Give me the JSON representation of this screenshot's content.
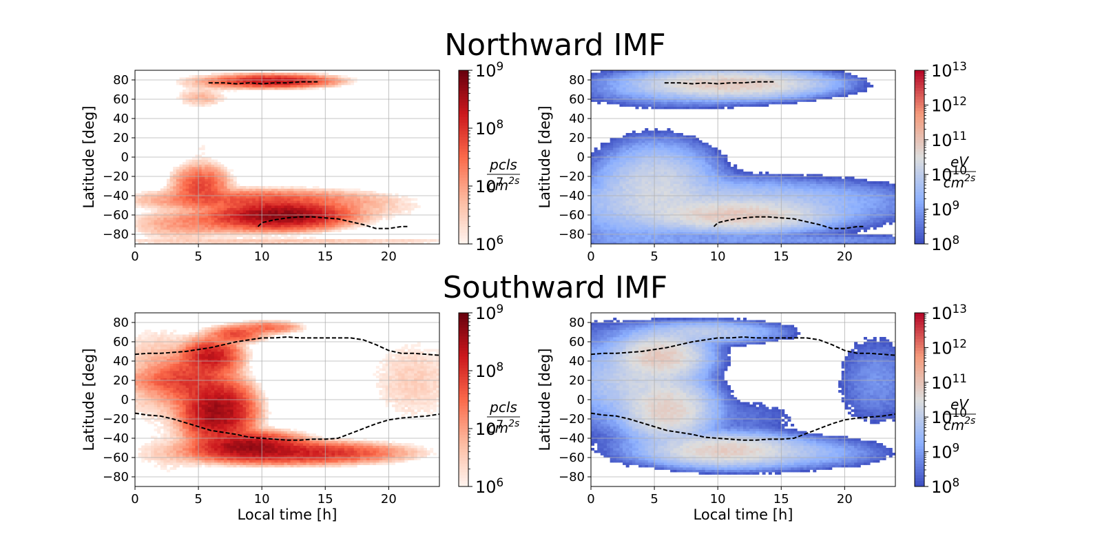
{
  "rows": [
    {
      "title": "Northward IMF",
      "panels": [
        {
          "ylabel": "Latitude [deg]",
          "xlabel": "",
          "cb_ticks": [
            "10^9",
            "10^8",
            "10^7",
            "10^6"
          ],
          "unit_num": "pcls",
          "unit_den": "cm^2s"
        },
        {
          "ylabel": "Latitude [deg]",
          "xlabel": "",
          "cb_ticks": [
            "10^13",
            "10^12",
            "10^11",
            "10^10",
            "10^9",
            "10^8"
          ],
          "unit_num": "eV",
          "unit_den": "cm^2s"
        }
      ]
    },
    {
      "title": "Southward IMF",
      "panels": [
        {
          "ylabel": "Latitude [deg]",
          "xlabel": "Local time [h]",
          "cb_ticks": [
            "10^9",
            "10^8",
            "10^7",
            "10^6"
          ],
          "unit_num": "pcls",
          "unit_den": "cm^2s"
        },
        {
          "ylabel": "Latitude [deg]",
          "xlabel": "Local time [h]",
          "cb_ticks": [
            "10^13",
            "10^12",
            "10^11",
            "10^10",
            "10^9",
            "10^8"
          ],
          "unit_num": "eV",
          "unit_den": "cm^2s"
        }
      ]
    }
  ],
  "colors": {
    "reds_cmap": [
      "#fff5f0",
      "#fcbba1",
      "#fb6a4a",
      "#cb181d",
      "#67000d"
    ],
    "coolwarm_cmap": [
      "#3b4cc0",
      "#8db0fe",
      "#dddddd",
      "#f49a7b",
      "#b40426"
    ],
    "boundary": "#000000",
    "grid": "#b0b0b0"
  },
  "chart_data": [
    {
      "type": "heatmap",
      "row": "Northward IMF",
      "quantity": "particle flux",
      "colormap": "Reds",
      "colorbar_log_range": [
        6,
        9
      ],
      "colorbar_ticks": [
        "10^6",
        "10^7",
        "10^8",
        "10^9"
      ],
      "colorbar_unit": "pcls / cm^2s",
      "xlabel": "",
      "ylabel": "Latitude [deg]",
      "xlim": [
        0,
        24
      ],
      "ylim": [
        -90,
        90
      ],
      "xticks": [
        0,
        5,
        10,
        15,
        20
      ],
      "yticks": [
        -80,
        -60,
        -40,
        -20,
        0,
        20,
        40,
        60,
        80
      ],
      "grid": true,
      "blobs": [
        {
          "lt": 11,
          "lat": 79,
          "slt": 2.0,
          "slat": 3,
          "level": 8.3
        },
        {
          "lt": 7.5,
          "lat": 78,
          "slt": 2.0,
          "slat": 4,
          "level": 7.0
        },
        {
          "lt": 5.2,
          "lat": 62,
          "slt": 1.0,
          "slat": 5,
          "level": 6.8
        },
        {
          "lt": 11.5,
          "lat": -60,
          "slt": 2.2,
          "slat": 6,
          "level": 8.7
        },
        {
          "lt": 9.5,
          "lat": -44,
          "slt": 4.0,
          "slat": 5,
          "level": 7.7
        },
        {
          "lt": 5.2,
          "lat": -30,
          "slt": 1.0,
          "slat": 10,
          "level": 7.8
        },
        {
          "lt": 7.5,
          "lat": -66,
          "slt": 2.5,
          "slat": 6,
          "level": 7.4
        },
        {
          "lt": 3.5,
          "lat": -70,
          "slt": 2.0,
          "slat": 8,
          "level": 6.9
        },
        {
          "lt": 16,
          "lat": -52,
          "slt": 3.5,
          "slat": 8,
          "level": 6.7
        },
        {
          "lt": 12,
          "lat": -87,
          "slt": 9.0,
          "slat": 2,
          "level": 6.6
        },
        {
          "lt": 5.2,
          "lat": 10,
          "slt": 0.8,
          "slat": 10,
          "level": 6.0
        }
      ],
      "boundaries": [
        {
          "lt": [
            5.8,
            7,
            8,
            9,
            10,
            11,
            12,
            13,
            14,
            14.4
          ],
          "lat": [
            77,
            77,
            76,
            77,
            76,
            77,
            77,
            78,
            78,
            78
          ]
        },
        {
          "lt": [
            9.7,
            10,
            11,
            12,
            13,
            14,
            15,
            16,
            17,
            18,
            19,
            20,
            21,
            21.6
          ],
          "lat": [
            -72,
            -68,
            -65,
            -63,
            -62,
            -62,
            -63,
            -64,
            -67,
            -70,
            -74,
            -74,
            -72,
            -72
          ]
        }
      ]
    },
    {
      "type": "heatmap",
      "row": "Northward IMF",
      "quantity": "energy flux",
      "colormap": "coolwarm",
      "colorbar_log_range": [
        8,
        13
      ],
      "colorbar_ticks": [
        "10^8",
        "10^9",
        "10^10",
        "10^11",
        "10^12",
        "10^13"
      ],
      "colorbar_unit": "eV / cm^2s",
      "xlabel": "",
      "ylabel": "Latitude [deg]",
      "xlim": [
        0,
        24
      ],
      "ylim": [
        -90,
        90
      ],
      "xticks": [
        0,
        5,
        10,
        15,
        20
      ],
      "yticks": [
        -80,
        -60,
        -40,
        -20,
        0,
        20,
        40,
        60,
        80
      ],
      "grid": true,
      "blobs": [
        {
          "lt": 11,
          "lat": 76,
          "slt": 3.0,
          "slat": 6,
          "level": 10.9
        },
        {
          "lt": 7,
          "lat": 72,
          "slt": 3.5,
          "slat": 9,
          "level": 9.4
        },
        {
          "lt": 16,
          "lat": 75,
          "slt": 2.5,
          "slat": 5,
          "level": 8.7
        },
        {
          "lt": 5.2,
          "lat": -30,
          "slt": 2.0,
          "slat": 18,
          "level": 10.3
        },
        {
          "lt": 11.5,
          "lat": -60,
          "slt": 3.0,
          "slat": 7,
          "level": 10.9
        },
        {
          "lt": 10,
          "lat": -45,
          "slt": 6.0,
          "slat": 10,
          "level": 9.9
        },
        {
          "lt": 3,
          "lat": -60,
          "slt": 2.5,
          "slat": 15,
          "level": 9.4
        },
        {
          "lt": 18,
          "lat": -55,
          "slt": 3.5,
          "slat": 12,
          "level": 8.8
        },
        {
          "lt": 5,
          "lat": 0,
          "slt": 1.3,
          "slat": 10,
          "level": 8.7
        },
        {
          "lt": 12,
          "lat": -86,
          "slt": 10.0,
          "slat": 3,
          "level": 9.0
        }
      ],
      "boundaries": [
        {
          "lt": [
            5.8,
            7,
            8,
            9,
            10,
            11,
            12,
            13,
            14,
            14.4
          ],
          "lat": [
            77,
            77,
            76,
            77,
            76,
            77,
            77,
            78,
            78,
            78
          ]
        },
        {
          "lt": [
            9.7,
            10,
            11,
            12,
            13,
            14,
            15,
            16,
            17,
            18,
            19,
            20,
            21,
            21.6
          ],
          "lat": [
            -72,
            -68,
            -65,
            -63,
            -62,
            -62,
            -63,
            -64,
            -67,
            -70,
            -74,
            -74,
            -72,
            -72
          ]
        }
      ]
    },
    {
      "type": "heatmap",
      "row": "Southward IMF",
      "quantity": "particle flux",
      "colormap": "Reds",
      "colorbar_log_range": [
        6,
        9
      ],
      "colorbar_ticks": [
        "10^6",
        "10^7",
        "10^8",
        "10^9"
      ],
      "colorbar_unit": "pcls / cm^2s",
      "xlabel": "Local time [h]",
      "ylabel": "Latitude [deg]",
      "xlim": [
        0,
        24
      ],
      "ylim": [
        -90,
        90
      ],
      "xticks": [
        0,
        5,
        10,
        15,
        20
      ],
      "yticks": [
        -80,
        -60,
        -40,
        -20,
        0,
        20,
        40,
        60,
        80
      ],
      "grid": true,
      "blobs": [
        {
          "lt": 6,
          "lat": 45,
          "slt": 1.0,
          "slat": 8,
          "level": 8.3
        },
        {
          "lt": 6.5,
          "lat": -12,
          "slt": 1.2,
          "slat": 14,
          "level": 8.6
        },
        {
          "lt": 4.5,
          "lat": 20,
          "slt": 1.5,
          "slat": 12,
          "level": 7.9
        },
        {
          "lt": 2.5,
          "lat": 20,
          "slt": 1.5,
          "slat": 5,
          "level": 7.3
        },
        {
          "lt": 8,
          "lat": 68,
          "slt": 1.0,
          "slat": 4,
          "level": 7.8
        },
        {
          "lt": 10.5,
          "lat": 75,
          "slt": 1.2,
          "slat": 3,
          "level": 7.5
        },
        {
          "lt": 9,
          "lat": -48,
          "slt": 1.8,
          "slat": 6,
          "level": 8.6
        },
        {
          "lt": 12.5,
          "lat": -55,
          "slt": 3.5,
          "slat": 5,
          "level": 8.2
        },
        {
          "lt": 2,
          "lat": 25,
          "slt": 2.0,
          "slat": 25,
          "level": 6.8
        },
        {
          "lt": 22,
          "lat": 20,
          "slt": 2.0,
          "slat": 25,
          "level": 6.5
        },
        {
          "lt": 3,
          "lat": -55,
          "slt": 2.0,
          "slat": 15,
          "level": 6.3
        }
      ],
      "boundaries": [
        {
          "lt": [
            0,
            1,
            2,
            3,
            4,
            5,
            6,
            7,
            8,
            9,
            10,
            11,
            12,
            13,
            14,
            15,
            16,
            17,
            18,
            19,
            20,
            21,
            22,
            23,
            24
          ],
          "lat": [
            47,
            48,
            48,
            49,
            50,
            52,
            54,
            57,
            60,
            62,
            64,
            64,
            65,
            64,
            64,
            64,
            64,
            64,
            62,
            57,
            51,
            48,
            48,
            47,
            46
          ]
        },
        {
          "lt": [
            0,
            1,
            2,
            3,
            4,
            5,
            6,
            7,
            8,
            9,
            10,
            11,
            12,
            13,
            14,
            15,
            16,
            17,
            18,
            19,
            20,
            21,
            22,
            23,
            24
          ],
          "lat": [
            -14,
            -16,
            -17,
            -20,
            -24,
            -28,
            -32,
            -34,
            -36,
            -39,
            -40,
            -41,
            -42,
            -42,
            -41,
            -41,
            -40,
            -35,
            -30,
            -25,
            -21,
            -19,
            -18,
            -17,
            -15
          ]
        }
      ]
    },
    {
      "type": "heatmap",
      "row": "Southward IMF",
      "quantity": "energy flux",
      "colormap": "coolwarm",
      "colorbar_log_range": [
        8,
        13
      ],
      "colorbar_ticks": [
        "10^8",
        "10^9",
        "10^10",
        "10^11",
        "10^12",
        "10^13"
      ],
      "colorbar_unit": "eV / cm^2s",
      "xlabel": "Local time [h]",
      "ylabel": "Latitude [deg]",
      "xlim": [
        0,
        24
      ],
      "ylim": [
        -90,
        90
      ],
      "xticks": [
        0,
        5,
        10,
        15,
        20
      ],
      "yticks": [
        -80,
        -60,
        -40,
        -20,
        0,
        20,
        40,
        60,
        80
      ],
      "grid": true,
      "blobs": [
        {
          "lt": 5.5,
          "lat": 45,
          "slt": 1.5,
          "slat": 10,
          "level": 10.9
        },
        {
          "lt": 6,
          "lat": -10,
          "slt": 1.5,
          "slat": 14,
          "level": 10.8
        },
        {
          "lt": 4,
          "lat": 20,
          "slt": 2.0,
          "slat": 14,
          "level": 10.1
        },
        {
          "lt": 9,
          "lat": 70,
          "slt": 2.5,
          "slat": 5,
          "level": 10.0
        },
        {
          "lt": 10.5,
          "lat": -52,
          "slt": 2.5,
          "slat": 7,
          "level": 10.8
        },
        {
          "lt": 14,
          "lat": -55,
          "slt": 3.5,
          "slat": 7,
          "level": 9.8
        },
        {
          "lt": 1.5,
          "lat": 20,
          "slt": 2.0,
          "slat": 25,
          "level": 9.4
        },
        {
          "lt": 22.5,
          "lat": 20,
          "slt": 1.5,
          "slat": 22,
          "level": 8.9
        },
        {
          "lt": 12,
          "lat": -20,
          "slt": 2.5,
          "slat": 12,
          "level": 8.5
        },
        {
          "lt": 3,
          "lat": -50,
          "slt": 1.5,
          "slat": 10,
          "level": 8.5
        }
      ],
      "boundaries": [
        {
          "lt": [
            0,
            1,
            2,
            3,
            4,
            5,
            6,
            7,
            8,
            9,
            10,
            11,
            12,
            13,
            14,
            15,
            16,
            17,
            18,
            19,
            20,
            21,
            22,
            23,
            24
          ],
          "lat": [
            47,
            48,
            48,
            49,
            50,
            52,
            54,
            57,
            60,
            62,
            64,
            64,
            65,
            64,
            64,
            64,
            64,
            64,
            62,
            57,
            51,
            48,
            48,
            47,
            46
          ]
        },
        {
          "lt": [
            0,
            1,
            2,
            3,
            4,
            5,
            6,
            7,
            8,
            9,
            10,
            11,
            12,
            13,
            14,
            15,
            16,
            17,
            18,
            19,
            20,
            21,
            22,
            23,
            24
          ],
          "lat": [
            -14,
            -16,
            -17,
            -20,
            -24,
            -28,
            -32,
            -34,
            -36,
            -39,
            -40,
            -41,
            -42,
            -42,
            -41,
            -41,
            -40,
            -35,
            -30,
            -25,
            -21,
            -19,
            -18,
            -17,
            -15
          ]
        }
      ]
    }
  ]
}
